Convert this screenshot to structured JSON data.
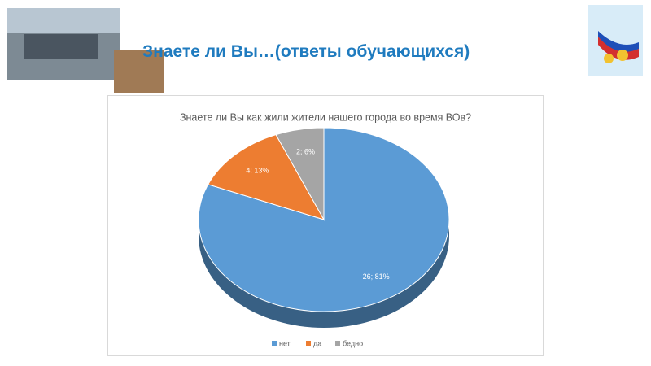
{
  "header": {
    "title": "Знаете ли Вы…(ответы обучающихся)"
  },
  "chart_data": {
    "type": "pie",
    "title": "Знаете ли Вы как жили жители нашего города во время ВОв?",
    "categories": [
      "нет",
      "да",
      "бедно"
    ],
    "values": [
      26,
      4,
      2
    ],
    "value_labels": [
      "26; 81%",
      "4; 13%",
      "2; 6%"
    ],
    "colors": [
      "#5b9bd5",
      "#ed7d31",
      "#a5a5a5"
    ],
    "legend": "bottom"
  }
}
